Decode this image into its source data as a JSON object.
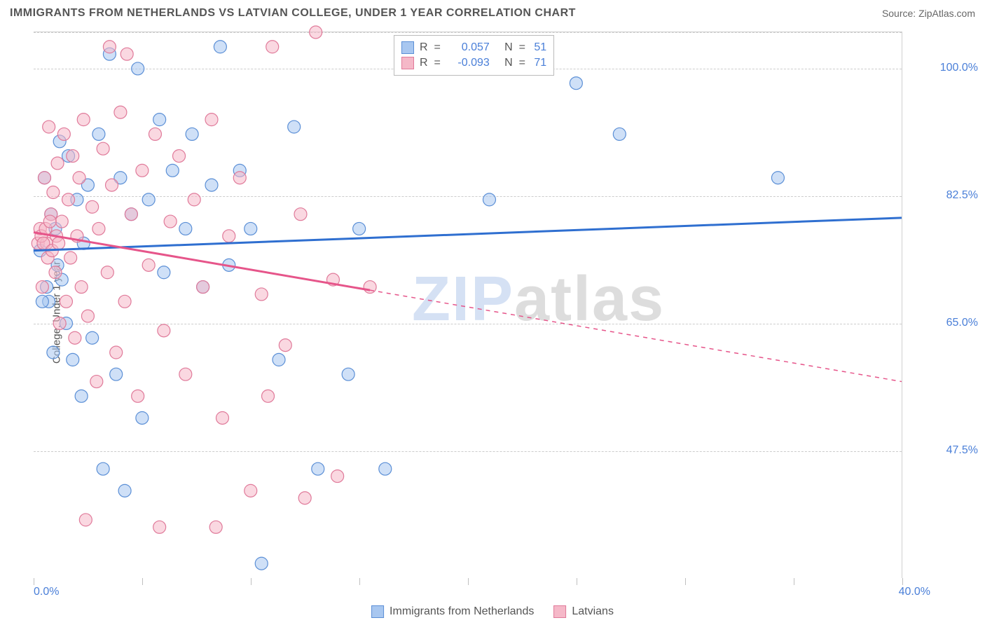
{
  "title": "IMMIGRANTS FROM NETHERLANDS VS LATVIAN COLLEGE, UNDER 1 YEAR CORRELATION CHART",
  "source_label": "Source: ZipAtlas.com",
  "y_axis_label": "College, Under 1 year",
  "watermark_a": "ZIP",
  "watermark_b": "atlas",
  "chart": {
    "type": "scatter",
    "xlim": [
      0,
      40
    ],
    "ylim": [
      30,
      105
    ],
    "x_tick_labels": {
      "min": "0.0%",
      "max": "40.0%"
    },
    "x_tick_positions": [
      0,
      5,
      10,
      15,
      20,
      25,
      30,
      35,
      40
    ],
    "y_gridlines": [
      47.5,
      65.0,
      82.5,
      100.0,
      105.0
    ],
    "y_tick_labels": [
      "47.5%",
      "65.0%",
      "82.5%",
      "100.0%"
    ],
    "grid_color": "#cccccc",
    "background_color": "#ffffff",
    "marker_radius": 9,
    "marker_stroke_width": 1.2,
    "line_width": 3,
    "series": [
      {
        "name": "Immigrants from Netherlands",
        "color_fill": "#a8c7f0",
        "color_stroke": "#5b8fd6",
        "line_color": "#2f6fd0",
        "R": "0.057",
        "N": "51",
        "trend": {
          "x1": 0,
          "y1": 75.0,
          "x2": 40,
          "y2": 79.5,
          "solid_until_x": 40
        },
        "points": [
          [
            0.3,
            75
          ],
          [
            0.5,
            85
          ],
          [
            0.6,
            70
          ],
          [
            0.7,
            68
          ],
          [
            0.8,
            80
          ],
          [
            0.9,
            61
          ],
          [
            1.0,
            78
          ],
          [
            1.2,
            90
          ],
          [
            1.3,
            71
          ],
          [
            1.5,
            65
          ],
          [
            1.6,
            88
          ],
          [
            1.8,
            60
          ],
          [
            2.0,
            82
          ],
          [
            2.2,
            55
          ],
          [
            2.5,
            84
          ],
          [
            2.7,
            63
          ],
          [
            3.0,
            91
          ],
          [
            3.2,
            45
          ],
          [
            3.5,
            102
          ],
          [
            3.8,
            58
          ],
          [
            4.0,
            85
          ],
          [
            4.2,
            42
          ],
          [
            4.5,
            80
          ],
          [
            4.8,
            100
          ],
          [
            5.0,
            52
          ],
          [
            5.3,
            82
          ],
          [
            5.8,
            93
          ],
          [
            6.0,
            72
          ],
          [
            6.4,
            86
          ],
          [
            7.0,
            78
          ],
          [
            7.3,
            91
          ],
          [
            7.8,
            70
          ],
          [
            8.2,
            84
          ],
          [
            8.6,
            103
          ],
          [
            9.0,
            73
          ],
          [
            9.5,
            86
          ],
          [
            10.0,
            78
          ],
          [
            10.5,
            32
          ],
          [
            11.3,
            60
          ],
          [
            12.0,
            92
          ],
          [
            13.1,
            45
          ],
          [
            14.5,
            58
          ],
          [
            15.0,
            78
          ],
          [
            16.2,
            45
          ],
          [
            21.0,
            82
          ],
          [
            25.0,
            98
          ],
          [
            27.0,
            91
          ],
          [
            34.3,
            85
          ],
          [
            0.4,
            68
          ],
          [
            1.1,
            73
          ],
          [
            2.3,
            76
          ]
        ]
      },
      {
        "name": "Latvians",
        "color_fill": "#f5b8c8",
        "color_stroke": "#e07a9a",
        "line_color": "#e6558a",
        "R": "-0.093",
        "N": "71",
        "trend": {
          "x1": 0,
          "y1": 77.5,
          "x2": 40,
          "y2": 57.0,
          "solid_until_x": 15.5
        },
        "points": [
          [
            0.2,
            76
          ],
          [
            0.3,
            78
          ],
          [
            0.4,
            70
          ],
          [
            0.5,
            85
          ],
          [
            0.6,
            76
          ],
          [
            0.7,
            92
          ],
          [
            0.8,
            80
          ],
          [
            0.9,
            83
          ],
          [
            1.0,
            72
          ],
          [
            1.1,
            87
          ],
          [
            1.2,
            65
          ],
          [
            1.3,
            79
          ],
          [
            1.4,
            91
          ],
          [
            1.5,
            68
          ],
          [
            1.6,
            82
          ],
          [
            1.7,
            74
          ],
          [
            1.8,
            88
          ],
          [
            1.9,
            63
          ],
          [
            2.0,
            77
          ],
          [
            2.1,
            85
          ],
          [
            2.2,
            70
          ],
          [
            2.3,
            93
          ],
          [
            2.5,
            66
          ],
          [
            2.7,
            81
          ],
          [
            2.9,
            57
          ],
          [
            3.0,
            78
          ],
          [
            3.2,
            89
          ],
          [
            3.4,
            72
          ],
          [
            3.6,
            84
          ],
          [
            3.8,
            61
          ],
          [
            4.0,
            94
          ],
          [
            4.2,
            68
          ],
          [
            4.5,
            80
          ],
          [
            4.8,
            55
          ],
          [
            5.0,
            86
          ],
          [
            5.3,
            73
          ],
          [
            5.6,
            91
          ],
          [
            6.0,
            64
          ],
          [
            6.3,
            79
          ],
          [
            6.7,
            88
          ],
          [
            7.0,
            58
          ],
          [
            7.4,
            82
          ],
          [
            7.8,
            70
          ],
          [
            8.2,
            93
          ],
          [
            8.7,
            52
          ],
          [
            9.0,
            77
          ],
          [
            9.5,
            85
          ],
          [
            10.0,
            42
          ],
          [
            10.5,
            69
          ],
          [
            11.0,
            103
          ],
          [
            11.6,
            62
          ],
          [
            12.3,
            80
          ],
          [
            13.0,
            105
          ],
          [
            13.8,
            71
          ],
          [
            15.5,
            70
          ],
          [
            3.5,
            103
          ],
          [
            4.3,
            102
          ],
          [
            0.35,
            77
          ],
          [
            0.45,
            76
          ],
          [
            0.55,
            78
          ],
          [
            0.65,
            74
          ],
          [
            0.75,
            79
          ],
          [
            0.85,
            75
          ],
          [
            1.05,
            77
          ],
          [
            1.15,
            76
          ],
          [
            2.4,
            38
          ],
          [
            5.8,
            37
          ],
          [
            10.8,
            55
          ],
          [
            12.5,
            41
          ],
          [
            14.0,
            44
          ],
          [
            8.4,
            37
          ]
        ]
      }
    ]
  },
  "legend_bottom": [
    {
      "label": "Immigrants from Netherlands",
      "fill": "#a8c7f0",
      "stroke": "#5b8fd6"
    },
    {
      "label": "Latvians",
      "fill": "#f5b8c8",
      "stroke": "#e07a9a"
    }
  ],
  "legend_top_labels": {
    "R": "R  =",
    "N": "N  ="
  }
}
